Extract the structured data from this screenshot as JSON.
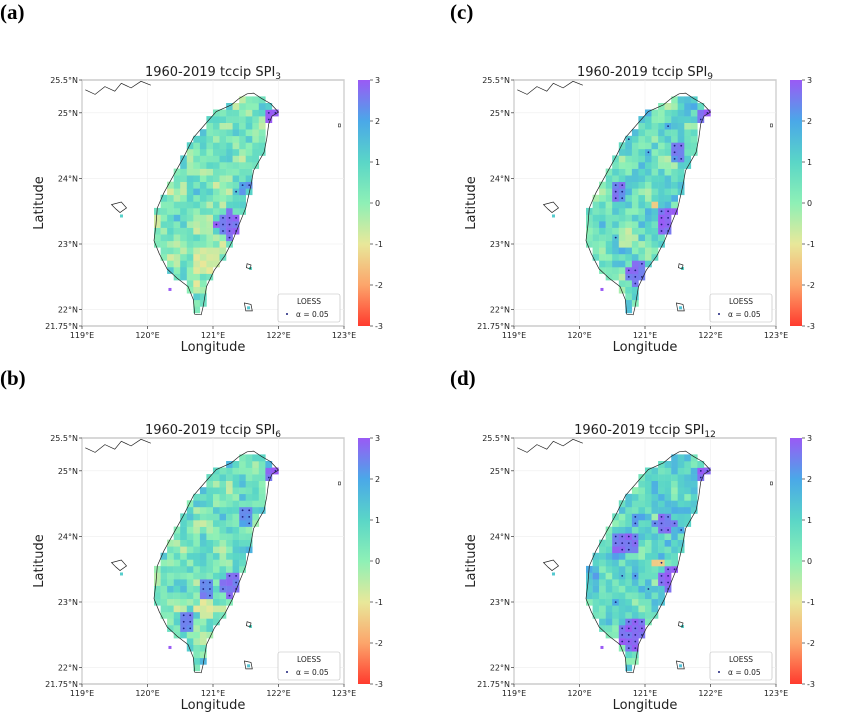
{
  "figure": {
    "colors": {
      "land_outline": "#222222",
      "dot": "#1a1f7a",
      "scale": [
        "#ff3b2e",
        "#fca56b",
        "#e8e89a",
        "#8ef0b6",
        "#5ad6c7",
        "#4aa8e8",
        "#9a5af5"
      ]
    }
  },
  "chart_data": [
    {
      "id": "a",
      "panel_label": "(a)",
      "type": "heatmap",
      "title_main": "1960-2019 tccip SPI",
      "title_sub": "3",
      "xlabel": "Longitude",
      "ylabel": "Latitude",
      "xlim": [
        119,
        123
      ],
      "ylim": [
        21.75,
        25.5
      ],
      "xticks": [
        "119°E",
        "120°E",
        "121°E",
        "122°E",
        "123°E"
      ],
      "yticks": [
        "21.75°N",
        "22°N",
        "23°N",
        "24°N",
        "25°N",
        "25.5°N"
      ],
      "colorbar": {
        "ticks": [
          "3",
          "2",
          "1",
          "0",
          "-1",
          "-2",
          "-3"
        ],
        "range": [
          -3,
          3
        ]
      },
      "legend": {
        "title": "LOESS",
        "entry": "α = 0.05",
        "position": "lower-right"
      },
      "seed": 11,
      "bias": 0.35,
      "dot_density": 0.05,
      "hotspots": [
        {
          "lon": 121.25,
          "lat": 23.3,
          "r": 0.22,
          "val": 2.7,
          "dots": true
        },
        {
          "lon": 121.95,
          "lat": 24.95,
          "r": 0.12,
          "val": 2.8,
          "dots": true
        },
        {
          "lon": 121.45,
          "lat": 23.9,
          "r": 0.1,
          "val": 2.2,
          "dots": true
        },
        {
          "lon": 120.9,
          "lat": 22.75,
          "r": 0.25,
          "val": -0.8,
          "dots": false
        },
        {
          "lon": 120.85,
          "lat": 23.3,
          "r": 0.15,
          "val": -0.5,
          "dots": false
        }
      ]
    },
    {
      "id": "b",
      "panel_label": "(b)",
      "type": "heatmap",
      "title_main": "1960-2019 tccip SPI",
      "title_sub": "6",
      "xlabel": "Longitude",
      "ylabel": "Latitude",
      "xlim": [
        119,
        123
      ],
      "ylim": [
        21.75,
        25.5
      ],
      "xticks": [
        "119°E",
        "120°E",
        "121°E",
        "122°E",
        "123°E"
      ],
      "yticks": [
        "21.75°N",
        "22°N",
        "23°N",
        "24°N",
        "25°N",
        "25.5°N"
      ],
      "colorbar": {
        "ticks": [
          "3",
          "2",
          "1",
          "0",
          "-1",
          "-2",
          "-3"
        ],
        "range": [
          -3,
          3
        ]
      },
      "legend": {
        "title": "LOESS",
        "entry": "α = 0.05",
        "position": "lower-right"
      },
      "seed": 23,
      "bias": 0.55,
      "dot_density": 0.07,
      "hotspots": [
        {
          "lon": 121.3,
          "lat": 23.25,
          "r": 0.2,
          "val": 2.6,
          "dots": true
        },
        {
          "lon": 121.95,
          "lat": 24.95,
          "r": 0.12,
          "val": 2.8,
          "dots": true
        },
        {
          "lon": 120.9,
          "lat": 23.2,
          "r": 0.12,
          "val": 2.5,
          "dots": true
        },
        {
          "lon": 120.6,
          "lat": 22.7,
          "r": 0.12,
          "val": 2.4,
          "dots": true
        },
        {
          "lon": 121.5,
          "lat": 24.3,
          "r": 0.12,
          "val": 2.2,
          "dots": true
        },
        {
          "lon": 120.9,
          "lat": 22.9,
          "r": 0.18,
          "val": -0.8,
          "dots": false
        },
        {
          "lon": 121.2,
          "lat": 23.6,
          "r": 0.1,
          "val": -0.4,
          "dots": false
        }
      ]
    },
    {
      "id": "c",
      "panel_label": "(c)",
      "type": "heatmap",
      "title_main": "1960-2019 tccip SPI",
      "title_sub": "9",
      "xlabel": "Longitude",
      "ylabel": "Latitude",
      "xlim": [
        119,
        123
      ],
      "ylim": [
        21.75,
        25.5
      ],
      "xticks": [
        "119°E",
        "120°E",
        "121°E",
        "122°E",
        "123°E"
      ],
      "yticks": [
        "21.75°N",
        "22°N",
        "23°N",
        "24°N",
        "25°N",
        "25.5°N"
      ],
      "colorbar": {
        "ticks": [
          "3",
          "2",
          "1",
          "0",
          "-1",
          "-2",
          "-3"
        ],
        "range": [
          -3,
          3
        ]
      },
      "legend": {
        "title": "LOESS",
        "entry": "α = 0.05",
        "position": "lower-right"
      },
      "seed": 37,
      "bias": 0.75,
      "dot_density": 0.1,
      "hotspots": [
        {
          "lon": 121.4,
          "lat": 23.35,
          "r": 0.22,
          "val": 2.8,
          "dots": true
        },
        {
          "lon": 121.95,
          "lat": 24.95,
          "r": 0.14,
          "val": 2.8,
          "dots": true
        },
        {
          "lon": 120.9,
          "lat": 22.55,
          "r": 0.2,
          "val": 2.6,
          "dots": true
        },
        {
          "lon": 120.6,
          "lat": 23.8,
          "r": 0.12,
          "val": 2.5,
          "dots": true
        },
        {
          "lon": 121.5,
          "lat": 24.4,
          "r": 0.14,
          "val": 2.4,
          "dots": true
        },
        {
          "lon": 121.15,
          "lat": 23.6,
          "r": 0.08,
          "val": -1.3,
          "dots": true
        },
        {
          "lon": 120.7,
          "lat": 23.1,
          "r": 0.15,
          "val": -0.5,
          "dots": false
        }
      ]
    },
    {
      "id": "d",
      "panel_label": "(d)",
      "type": "heatmap",
      "title_main": "1960-2019 tccip SPI",
      "title_sub": "12",
      "xlabel": "Longitude",
      "ylabel": "Latitude",
      "xlim": [
        119,
        123
      ],
      "ylim": [
        21.75,
        25.5
      ],
      "xticks": [
        "119°E",
        "120°E",
        "121°E",
        "122°E",
        "123°E"
      ],
      "yticks": [
        "21.75°N",
        "22°N",
        "23°N",
        "24°N",
        "25°N",
        "25.5°N"
      ],
      "colorbar": {
        "ticks": [
          "3",
          "2",
          "1",
          "0",
          "-1",
          "-2",
          "-3"
        ],
        "range": [
          -3,
          3
        ]
      },
      "legend": {
        "title": "LOESS",
        "entry": "α = 0.05",
        "position": "lower-right"
      },
      "seed": 51,
      "bias": 0.95,
      "dot_density": 0.16,
      "hotspots": [
        {
          "lon": 121.45,
          "lat": 23.35,
          "r": 0.24,
          "val": 2.9,
          "dots": true
        },
        {
          "lon": 121.95,
          "lat": 24.95,
          "r": 0.16,
          "val": 2.9,
          "dots": true
        },
        {
          "lon": 120.8,
          "lat": 22.5,
          "r": 0.25,
          "val": 2.8,
          "dots": true
        },
        {
          "lon": 120.7,
          "lat": 23.9,
          "r": 0.2,
          "val": 2.7,
          "dots": true
        },
        {
          "lon": 121.3,
          "lat": 24.2,
          "r": 0.18,
          "val": 2.6,
          "dots": true
        },
        {
          "lon": 121.2,
          "lat": 23.6,
          "r": 0.09,
          "val": -1.5,
          "dots": true
        },
        {
          "lon": 120.9,
          "lat": 22.75,
          "r": 0.06,
          "val": -1.4,
          "dots": true
        }
      ]
    }
  ]
}
